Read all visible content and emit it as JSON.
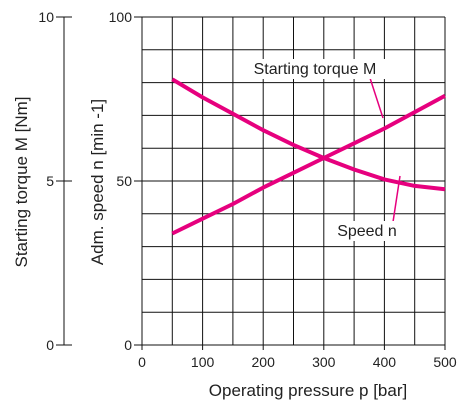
{
  "chart_data": {
    "type": "line",
    "x": [
      50,
      100,
      150,
      200,
      250,
      300,
      350,
      400,
      450,
      500
    ],
    "xlabel": "Operating pressure p [bar]",
    "xlim": [
      0,
      500
    ],
    "xticks": [
      "0",
      "100",
      "200",
      "300",
      "400",
      "500"
    ],
    "ylabel": "Adm. speed n [min -1]",
    "ylim": [
      0,
      100
    ],
    "yticks": [
      "0",
      "50",
      "100"
    ],
    "ylabel2": "Starting torque M [Nm]",
    "ylim2": [
      0,
      10
    ],
    "yticks2": [
      "0",
      "5",
      "10"
    ],
    "grid": true,
    "line_color": "#e6007e",
    "series": [
      {
        "name": "Starting torque M",
        "values": [
          34,
          38.5,
          43,
          48,
          52.5,
          57,
          61.5,
          66,
          71,
          76
        ]
      },
      {
        "name": "Speed n",
        "values": [
          81,
          75.5,
          70.5,
          65.5,
          61,
          57,
          53.5,
          50.5,
          48.5,
          47.5
        ]
      }
    ],
    "annotations": [
      {
        "text": "Starting torque M",
        "series": 0
      },
      {
        "text": "Speed n",
        "series": 1
      }
    ]
  }
}
